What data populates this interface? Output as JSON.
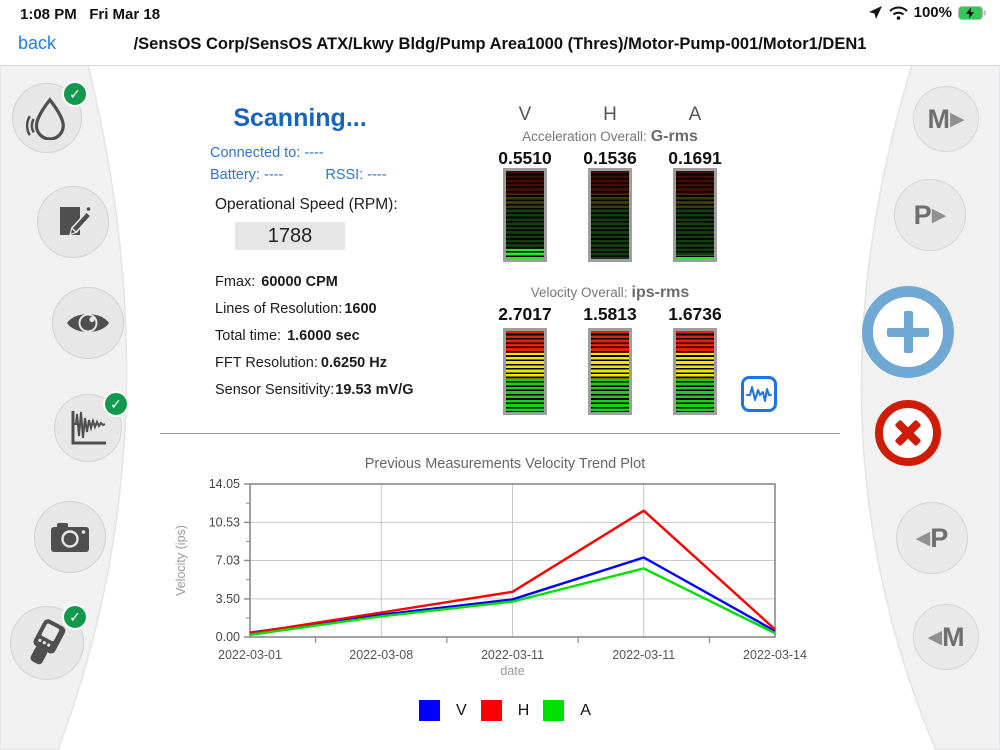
{
  "status_bar": {
    "time": "1:08 PM",
    "date": "Fri Mar 18",
    "battery": "100%"
  },
  "nav": {
    "back_label": "back",
    "breadcrumb": "/SensOS Corp/SensOS ATX/Lkwy Bldg/Pump Area1000 (Thres)/Motor-Pump-001/Motor1/DEN1"
  },
  "scan": {
    "status": "Scanning...",
    "connected_to": "Connected to: ----",
    "battery": "Battery: ----",
    "rssi": "RSSI: ----",
    "rpm_label": "Operational Speed (RPM):",
    "rpm_value": "1788"
  },
  "params": [
    {
      "label": "Fmax:",
      "value": "60000 CPM"
    },
    {
      "label": "Lines of Resolution:",
      "value": "1600"
    },
    {
      "label": "Total time:",
      "value": "1.6000 sec"
    },
    {
      "label": "FFT Resolution:",
      "value": "0.6250 Hz"
    },
    {
      "label": "Sensor Sensitivity:",
      "value": "19.53 mV/G"
    }
  ],
  "meters": {
    "axes": [
      "V",
      "H",
      "A"
    ],
    "acceleration": {
      "label": "Acceleration Overall:",
      "unit": "G-rms",
      "values": [
        "0.5510",
        "0.1536",
        "0.1691"
      ],
      "levels_pct": [
        11,
        0,
        4
      ]
    },
    "velocity": {
      "label": "Velocity Overall:",
      "unit": "ips-rms",
      "values": [
        "2.7017",
        "1.5813",
        "1.6736"
      ],
      "levels_pct": [
        100,
        100,
        100
      ]
    }
  },
  "right_toolbar": {
    "m_next": "M",
    "p_next": "P",
    "p_prev": "P",
    "m_prev": "M"
  },
  "colors": {
    "accent_blue": "#1565c0",
    "add_button": "#6fa8d2",
    "cancel_button": "#ce1d04",
    "check_green": "#12994d"
  },
  "chart_data": {
    "type": "line",
    "title": "Previous Measurements Velocity Trend Plot",
    "xlabel": "date",
    "ylabel": "Velocity (ips)",
    "categories": [
      "2022-03-01",
      "2022-03-08",
      "2022-03-11",
      "2022-03-11",
      "2022-03-14"
    ],
    "yticks": [
      0.0,
      3.5,
      7.03,
      10.53,
      14.05
    ],
    "ylim": [
      0,
      14.05
    ],
    "grid": true,
    "legend_position": "bottom",
    "series": [
      {
        "name": "V",
        "color": "#0000ff",
        "values": [
          0.4,
          2.05,
          3.45,
          7.3,
          0.55
        ]
      },
      {
        "name": "H",
        "color": "#ff0000",
        "values": [
          0.35,
          2.25,
          4.15,
          11.6,
          0.7
        ]
      },
      {
        "name": "A",
        "color": "#00e000",
        "values": [
          0.2,
          1.9,
          3.25,
          6.3,
          0.35
        ]
      }
    ]
  }
}
